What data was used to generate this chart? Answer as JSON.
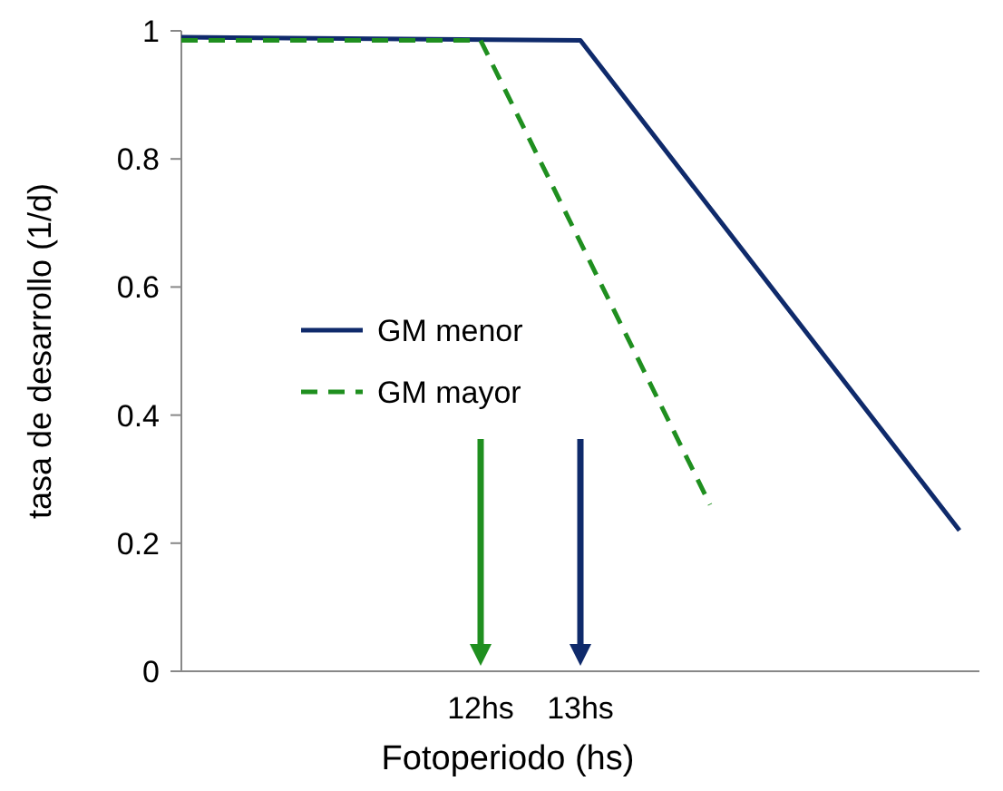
{
  "chart_data": {
    "type": "line",
    "xlabel": "Fotoperiodo (hs)",
    "ylabel": "tasa de desarrollo (1/d)",
    "xlim": [
      9,
      17
    ],
    "xticks": [
      {
        "value": 12,
        "label": "12hs"
      },
      {
        "value": 13,
        "label": "13hs"
      }
    ],
    "ylim": [
      0,
      1
    ],
    "yticks": [
      0,
      0.2,
      0.4,
      0.6,
      0.8,
      1
    ],
    "grid": false,
    "legend": "left",
    "series": [
      {
        "name": "GM menor",
        "color": "#0f2a6b",
        "x": [
          9,
          13,
          16.8
        ],
        "values": [
          0.99,
          0.985,
          0.22
        ],
        "line_style": "solid"
      },
      {
        "name": "GM mayor",
        "color": "#1f8f1f",
        "x": [
          9,
          12,
          14.3
        ],
        "values": [
          0.985,
          0.985,
          0.26
        ],
        "line_style": "dashed"
      }
    ]
  }
}
